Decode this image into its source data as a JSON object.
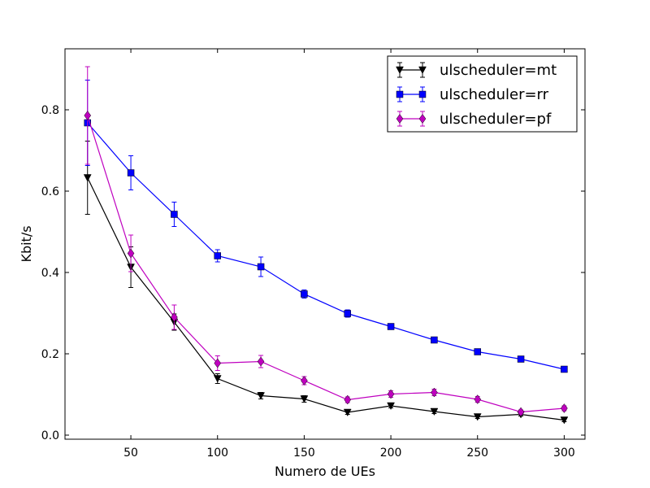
{
  "chart_data": {
    "type": "line",
    "title": "",
    "xlabel": "Numero de UEs",
    "ylabel": "Kbit/s",
    "xlim": [
      12,
      312
    ],
    "ylim": [
      -0.01,
      0.95
    ],
    "xticks": [
      50,
      100,
      150,
      200,
      250,
      300
    ],
    "yticks": [
      0.0,
      0.2,
      0.4,
      0.6,
      0.8
    ],
    "ytick_labels": [
      "0.0",
      "0.2",
      "0.4",
      "0.6",
      "0.8"
    ],
    "grid": false,
    "legend_position": "top-right",
    "x": [
      25,
      50,
      75,
      100,
      125,
      150,
      175,
      200,
      225,
      250,
      275,
      300
    ],
    "series": [
      {
        "name": "ulscheduler=mt",
        "color": "#000000",
        "marker": "triangle-down",
        "values": [
          0.633,
          0.413,
          0.278,
          0.139,
          0.097,
          0.089,
          0.056,
          0.072,
          0.058,
          0.045,
          0.051,
          0.037
        ],
        "errors": [
          0.09,
          0.05,
          0.02,
          0.012,
          0.008,
          0.008,
          0.005,
          0.005,
          0.005,
          0.004,
          0.004,
          0.004
        ]
      },
      {
        "name": "ulscheduler=rr",
        "color": "#0000ff",
        "marker": "square",
        "values": [
          0.768,
          0.645,
          0.543,
          0.441,
          0.414,
          0.347,
          0.299,
          0.267,
          0.234,
          0.205,
          0.187,
          0.162
        ],
        "errors": [
          0.105,
          0.042,
          0.03,
          0.015,
          0.024,
          0.01,
          0.009,
          0.007,
          0.005,
          0.004,
          0.004,
          0.006
        ]
      },
      {
        "name": "ulscheduler=pf",
        "color": "#bf00bf",
        "marker": "diamond",
        "values": [
          0.786,
          0.447,
          0.29,
          0.177,
          0.181,
          0.134,
          0.087,
          0.101,
          0.105,
          0.088,
          0.057,
          0.066
        ],
        "errors": [
          0.12,
          0.045,
          0.03,
          0.018,
          0.015,
          0.01,
          0.007,
          0.008,
          0.008,
          0.007,
          0.005,
          0.006
        ]
      }
    ]
  }
}
